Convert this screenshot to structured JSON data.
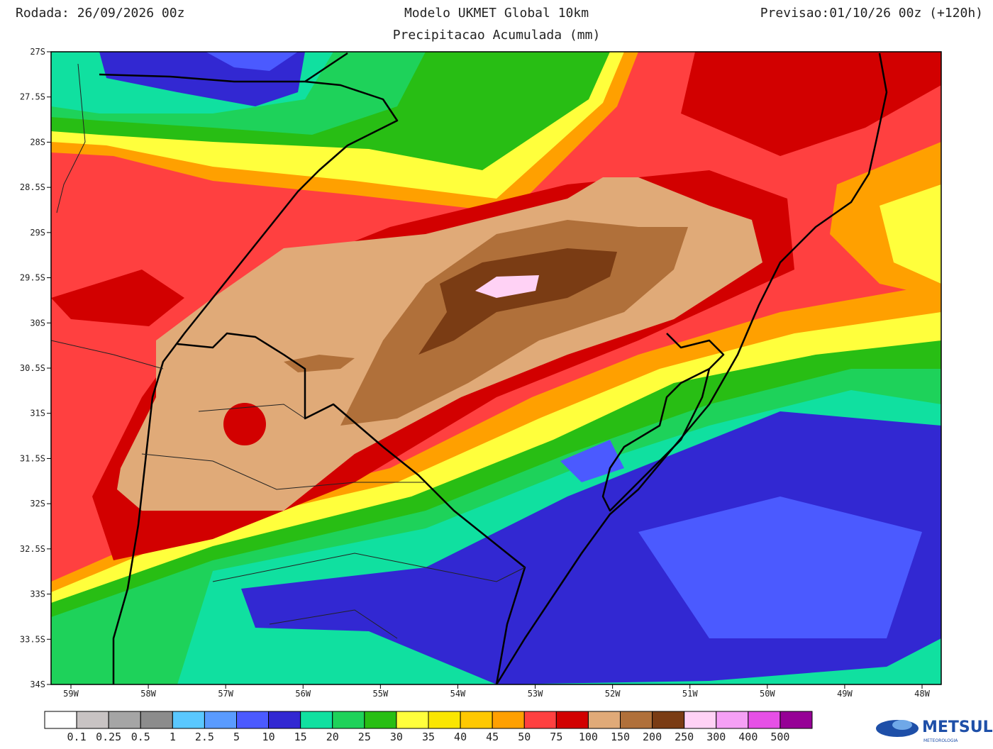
{
  "header": {
    "run": "Rodada: 26/09/2026 00z",
    "model": "Modelo UKMET Global 10km",
    "subtitle": "Precipitacao Acumulada (mm)",
    "forecast": "Previsao:01/10/26 00z (+120h)"
  },
  "map": {
    "lat_labels": [
      "27S",
      "27.5S",
      "28S",
      "28.5S",
      "29S",
      "29.5S",
      "30S",
      "30.5S",
      "31S",
      "31.5S",
      "32S",
      "32.5S",
      "33S",
      "33.5S",
      "34S"
    ],
    "lon_labels": [
      "59W",
      "58W",
      "57W",
      "56W",
      "55W",
      "54W",
      "53W",
      "52W",
      "51W",
      "50W",
      "49W",
      "48W"
    ]
  },
  "legend": {
    "colors": [
      "#ffffff",
      "#c8c3c3",
      "#a5a5a5",
      "#8c8c8c",
      "#5ac8ff",
      "#5a9bff",
      "#4b5aff",
      "#3228d2",
      "#10e0a0",
      "#1ed25a",
      "#28be14",
      "#ffff3c",
      "#fae600",
      "#ffc800",
      "#ffa000",
      "#ff4040",
      "#d20000",
      "#e0aa78",
      "#b0703a",
      "#7a3c14",
      "#ffd2f5",
      "#f5a0f5",
      "#e650e6",
      "#960096"
    ],
    "labels": [
      "0.1",
      "0.25",
      "0.5",
      "1",
      "2.5",
      "5",
      "10",
      "15",
      "20",
      "25",
      "30",
      "35",
      "40",
      "45",
      "50",
      "75",
      "100",
      "150",
      "200",
      "250",
      "300",
      "400",
      "500"
    ]
  },
  "logo": {
    "name": "METSUL",
    "tagline": "METEOROLOGIA"
  }
}
